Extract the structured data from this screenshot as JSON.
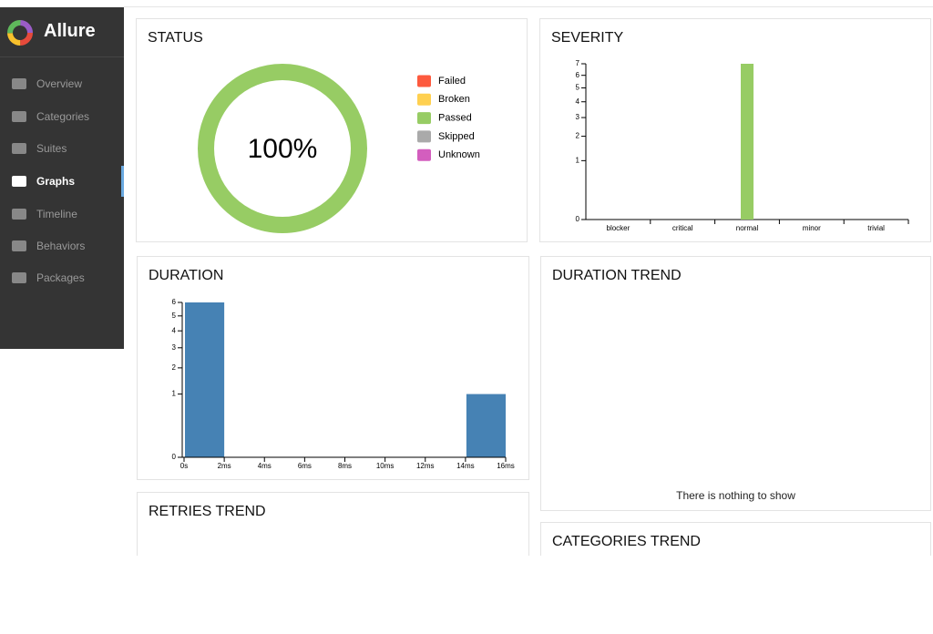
{
  "sidebar": {
    "brand": "Allure",
    "items": [
      "Overview",
      "Categories",
      "Suites",
      "Graphs",
      "Timeline",
      "Behaviors",
      "Packages"
    ],
    "active": 3
  },
  "chart_data": [
    {
      "type": "pie",
      "title": "STATUS",
      "categories": [
        "Failed",
        "Broken",
        "Passed",
        "Skipped",
        "Unknown"
      ],
      "colors": [
        "#fd5a3e",
        "#ffd050",
        "#97cc64",
        "#aaaaaa",
        "#d35ebe"
      ],
      "values": [
        0,
        0,
        100,
        0,
        0
      ],
      "center_label": "100%"
    },
    {
      "type": "bar",
      "title": "SEVERITY",
      "categories": [
        "blocker",
        "critical",
        "normal",
        "minor",
        "trivial"
      ],
      "values": [
        0,
        0,
        7,
        0,
        0
      ],
      "color": "#97cc64",
      "ylim": [
        0,
        7
      ],
      "yticks": [
        0,
        1,
        2,
        3,
        4,
        5,
        6,
        7
      ],
      "scale": "sqrt"
    },
    {
      "type": "histogram",
      "title": "DURATION",
      "bins": [
        0,
        2,
        4,
        6,
        8,
        10,
        12,
        14,
        16
      ],
      "values": [
        6,
        0,
        0,
        0,
        0,
        0,
        0,
        1
      ],
      "color": "#4682b4",
      "xlim": [
        0,
        16
      ],
      "xticks": [
        {
          "value": 0,
          "label": "0s"
        },
        {
          "value": 2,
          "label": "2ms"
        },
        {
          "value": 4,
          "label": "4ms"
        },
        {
          "value": 6,
          "label": "6ms"
        },
        {
          "value": 8,
          "label": "8ms"
        },
        {
          "value": 10,
          "label": "10ms"
        },
        {
          "value": 12,
          "label": "12ms"
        },
        {
          "value": 14,
          "label": "14ms"
        },
        {
          "value": 16,
          "label": "16ms"
        }
      ],
      "ylim": [
        0,
        6
      ],
      "yticks": [
        0,
        1,
        2,
        3,
        4,
        5,
        6
      ],
      "scale": "sqrt"
    }
  ],
  "trend_panels": [
    {
      "title": "DURATION TREND",
      "message": "There is nothing to show"
    },
    {
      "title": "RETRIES TREND"
    },
    {
      "title": "CATEGORIES TREND"
    }
  ]
}
